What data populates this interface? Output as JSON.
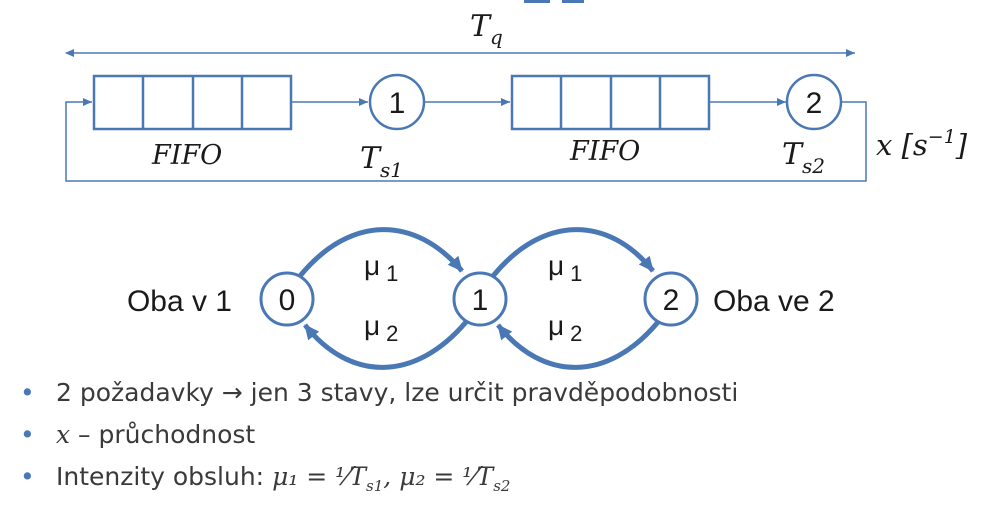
{
  "colors": {
    "accent": "#4a78b5",
    "text": "#1a1a1a"
  },
  "top_diagram": {
    "tq_label": "T",
    "tq_sub": "q",
    "fifo_1": "FIFO",
    "fifo_2": "FIFO",
    "server_1": "1",
    "server_2": "2",
    "ts1_label": "T",
    "ts1_sub": "s1",
    "ts2_label": "T",
    "ts2_sub": "s2",
    "throughput_label": "x [s",
    "throughput_exp": "−1",
    "throughput_close": "]"
  },
  "state_diagram": {
    "states": [
      "0",
      "1",
      "2"
    ],
    "left_label": "Oba v 1",
    "right_label": "Oba ve 2",
    "mu1": "μ",
    "mu1_sub": "1",
    "mu2": "μ",
    "mu2_sub": "2"
  },
  "bullets": {
    "b1": "2 požadavky → jen 3 stavy, lze určit pravděpodobnosti",
    "b2_var": "x",
    "b2_text": " – průchodnost",
    "b3_text": "Intenzity obsluh: ",
    "b3_formula": "μ₁ = ¹⁄T",
    "b3_sub1": "s1",
    "b3_mid": ", μ₂ = ¹⁄T",
    "b3_sub2": "s2",
    "bullet_char": "•"
  }
}
